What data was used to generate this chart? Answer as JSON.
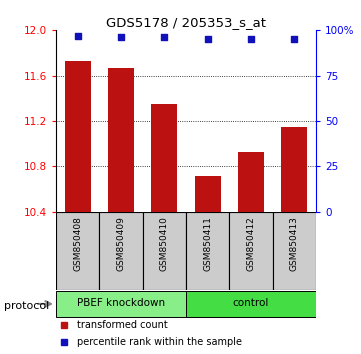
{
  "title": "GDS5178 / 205353_s_at",
  "samples": [
    "GSM850408",
    "GSM850409",
    "GSM850410",
    "GSM850411",
    "GSM850412",
    "GSM850413"
  ],
  "bar_values": [
    11.73,
    11.67,
    11.35,
    10.72,
    10.93,
    11.15
  ],
  "percentile_values": [
    97,
    96,
    96,
    95,
    95,
    95
  ],
  "ylim_left": [
    10.4,
    12.0
  ],
  "ylim_right": [
    0,
    100
  ],
  "yticks_left": [
    10.4,
    10.8,
    11.2,
    11.6,
    12.0
  ],
  "yticks_right": [
    0,
    25,
    50,
    75,
    100
  ],
  "ytick_labels_right": [
    "0",
    "25",
    "50",
    "75",
    "100%"
  ],
  "bar_color": "#bb1111",
  "dot_color": "#1111bb",
  "grid_color": "#000000",
  "groups": [
    {
      "label": "PBEF knockdown",
      "n": 3,
      "color": "#88ee88"
    },
    {
      "label": "control",
      "n": 3,
      "color": "#44dd44"
    }
  ],
  "protocol_label": "protocol",
  "legend_items": [
    {
      "color": "#bb1111",
      "marker": "s",
      "text": "transformed count"
    },
    {
      "color": "#1111bb",
      "marker": "s",
      "text": "percentile rank within the sample"
    }
  ],
  "background_color": "#ffffff",
  "plot_bg_color": "#ffffff",
  "label_area_bg": "#cccccc"
}
